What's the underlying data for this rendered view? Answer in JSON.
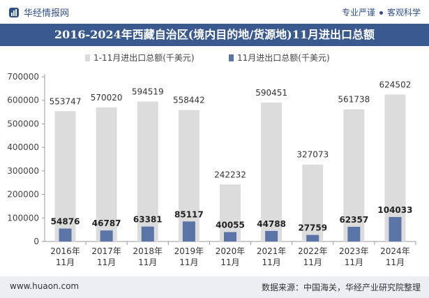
{
  "header": {
    "brand": "华经情报网",
    "tagline_left": "专业严谨",
    "tagline_right": "客观科学"
  },
  "colors": {
    "title_bg": "#3a5a8f",
    "series_a": "#dcdcdc",
    "series_b": "#5b74a8"
  },
  "chart_data": {
    "type": "bar",
    "title": "2016-2024年西藏自治区(境内目的地/货源地)11月进出口总额",
    "categories": [
      "2016年\n11月",
      "2017年\n11月",
      "2018年\n11月",
      "2019年\n11月",
      "2020年\n11月",
      "2021年\n11月",
      "2022年\n11月",
      "2023年\n11月",
      "2024年\n11月"
    ],
    "series": [
      {
        "name": "1-11月进出口总额(千美元)",
        "values": [
          553747,
          570020,
          594519,
          558442,
          242232,
          590451,
          327073,
          561738,
          624502
        ]
      },
      {
        "name": "11月进出口总额(千美元)",
        "values": [
          54876,
          46787,
          63381,
          85117,
          40055,
          44788,
          27759,
          62357,
          104033
        ]
      }
    ],
    "yticks": [
      0,
      100000,
      200000,
      300000,
      400000,
      500000,
      600000,
      700000
    ],
    "ylim": [
      0,
      700000
    ],
    "legend_position": "top-center",
    "grid": false
  },
  "footer": {
    "url": "www.huaon.com",
    "source": "数据来源：中国海关，华经产业研究院整理"
  }
}
